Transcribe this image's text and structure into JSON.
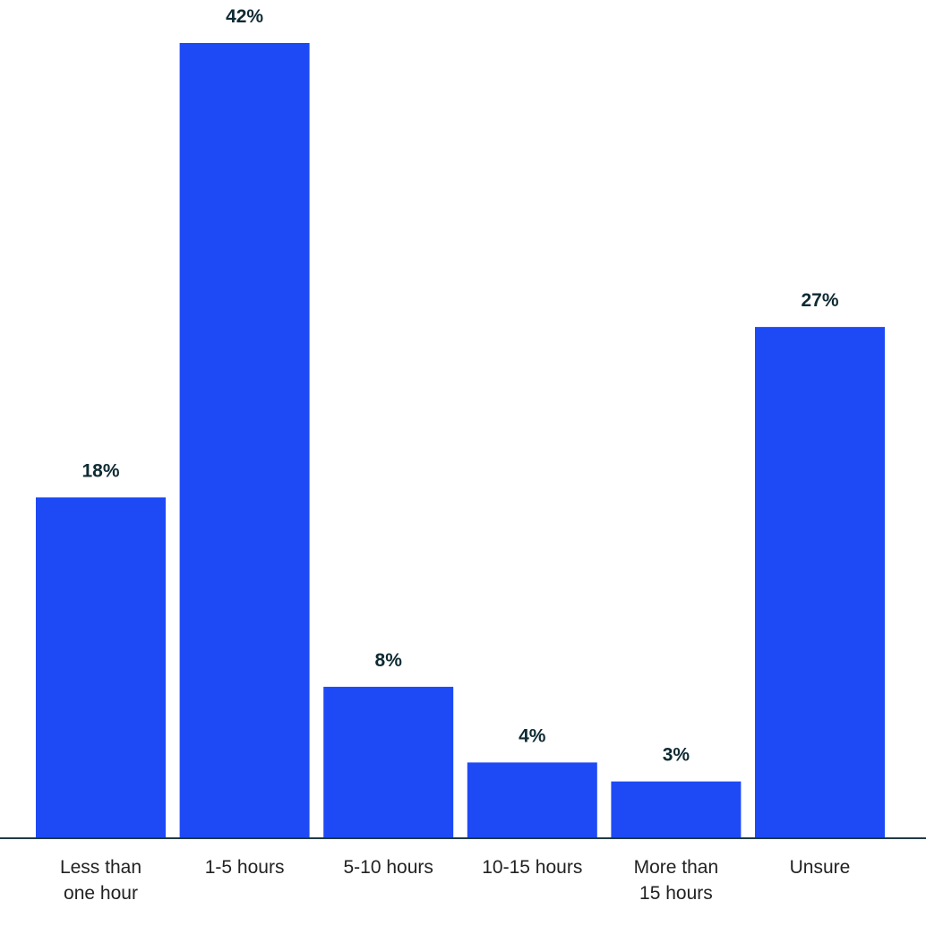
{
  "chart_data": {
    "type": "bar",
    "categories": [
      [
        "Less than",
        "one hour"
      ],
      [
        "1-5 hours"
      ],
      [
        "5-10 hours"
      ],
      [
        "10-15 hours"
      ],
      [
        "More than",
        "15 hours"
      ],
      [
        "Unsure"
      ]
    ],
    "values": [
      18,
      42,
      8,
      4,
      3,
      27
    ],
    "value_labels": [
      "18%",
      "42%",
      "8%",
      "4%",
      "3%",
      "27%"
    ],
    "ylim": [
      0,
      42
    ],
    "grid": false,
    "legend": "none",
    "colors": {
      "bar": "#1e4af5",
      "axis": "#1f3a44",
      "value_text": "#0e2a33",
      "tick_text": "#222222"
    }
  }
}
